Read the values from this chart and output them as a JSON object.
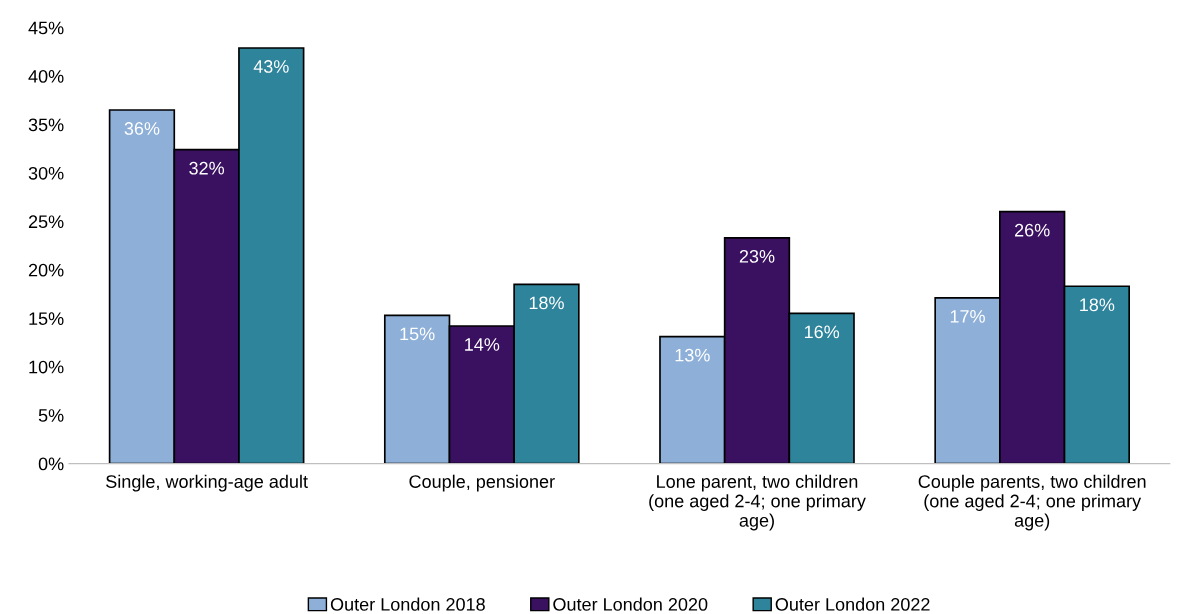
{
  "chart_data": {
    "type": "bar",
    "categories": [
      "Single, working-age adult",
      "Couple, pensioner",
      "Lone parent, two children (one aged 2-4; one primary age)",
      "Couple parents, two children (one aged 2-4; one primary age)"
    ],
    "series": [
      {
        "name": "Outer London 2018",
        "color": "#8eb0d8",
        "values": [
          36.5,
          15.3,
          13.1,
          17.1
        ],
        "value_labels": [
          "36%",
          "15%",
          "13%",
          "17%"
        ]
      },
      {
        "name": "Outer London 2020",
        "color": "#3a1060",
        "values": [
          32.4,
          14.2,
          23.3,
          26.0
        ],
        "value_labels": [
          "32%",
          "14%",
          "23%",
          "26%"
        ]
      },
      {
        "name": "Outer London 2022",
        "color": "#2e849b",
        "values": [
          42.9,
          18.5,
          15.5,
          18.3
        ],
        "value_labels": [
          "43%",
          "18%",
          "16%",
          "18%"
        ]
      }
    ],
    "ylim": [
      0,
      45
    ],
    "yticks": [
      {
        "value": 0,
        "label": "0%"
      },
      {
        "value": 5,
        "label": "5%"
      },
      {
        "value": 10,
        "label": "10%"
      },
      {
        "value": 15,
        "label": "15%"
      },
      {
        "value": 20,
        "label": "20%"
      },
      {
        "value": 25,
        "label": "25%"
      },
      {
        "value": 30,
        "label": "30%"
      },
      {
        "value": 35,
        "label": "35%"
      },
      {
        "value": 40,
        "label": "40%"
      },
      {
        "value": 45,
        "label": "45%"
      }
    ],
    "legend": "bottom",
    "grid": false
  }
}
